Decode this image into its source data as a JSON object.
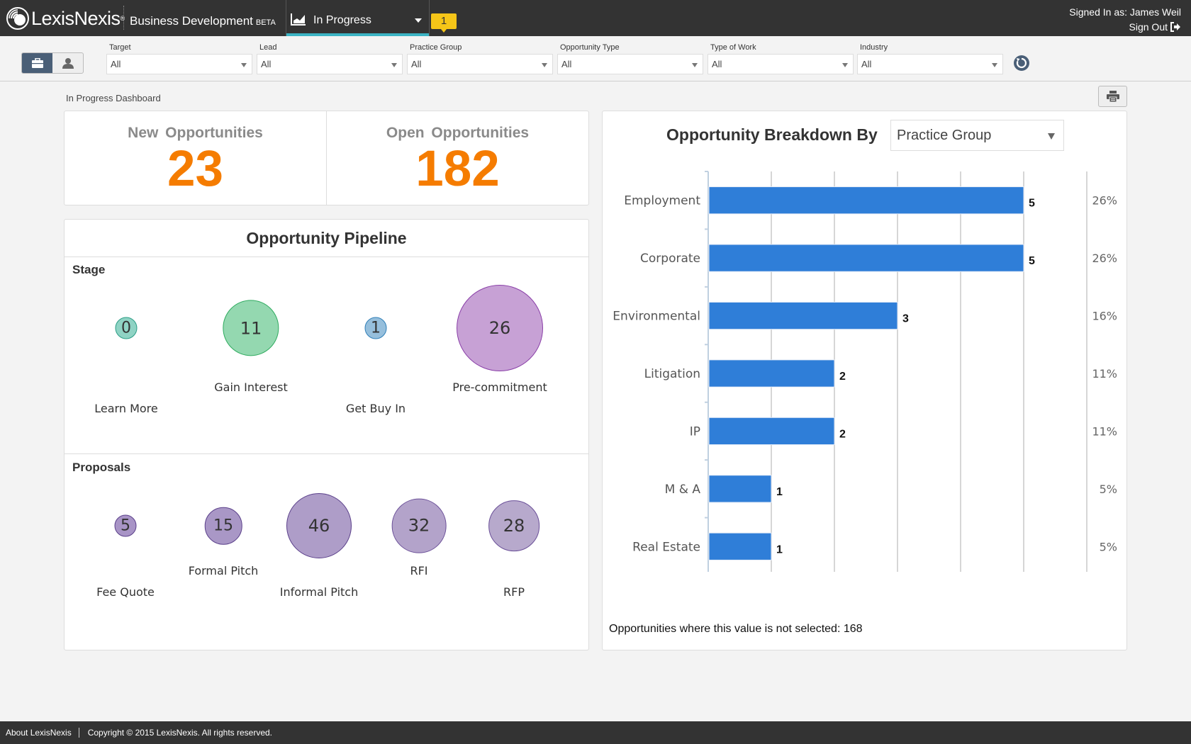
{
  "header": {
    "logo_text": "LexisNexis",
    "app_title": "Business Development",
    "app_badge": "BETA",
    "view_selector": "In Progress",
    "notification_count": "1",
    "signed_in": "Signed In as: James Weil",
    "sign_out": "Sign Out"
  },
  "filters": [
    {
      "label": "Target",
      "value": "All"
    },
    {
      "label": "Lead",
      "value": "All"
    },
    {
      "label": "Practice Group",
      "value": "All"
    },
    {
      "label": "Opportunity Type",
      "value": "All"
    },
    {
      "label": "Type of Work",
      "value": "All"
    },
    {
      "label": "Industry",
      "value": "All"
    }
  ],
  "dashboard": {
    "title": "In Progress Dashboard",
    "kpis": [
      {
        "label": "New Opportunities",
        "value": "23"
      },
      {
        "label": "Open Opportunities",
        "value": "182"
      }
    ],
    "pipeline": {
      "title": "Opportunity Pipeline",
      "stage": {
        "title": "Stage",
        "items": [
          {
            "label": "Learn More",
            "value": "0",
            "fill": "#8fd3c4",
            "stroke": "#2a9d85"
          },
          {
            "label": "Gain Interest",
            "value": "11",
            "fill": "#94d8b0",
            "stroke": "#2fab5f"
          },
          {
            "label": "Get Buy In",
            "value": "1",
            "fill": "#96bfdc",
            "stroke": "#2f7fb8"
          },
          {
            "label": "Pre-commitment",
            "value": "26",
            "fill": "#c7a1d5",
            "stroke": "#8a3fa8"
          }
        ]
      },
      "proposals": {
        "title": "Proposals",
        "items": [
          {
            "label": "Fee Quote",
            "value": "5",
            "fill": "#a894c6",
            "stroke": "#5a3f8a"
          },
          {
            "label": "Formal Pitch",
            "value": "15",
            "fill": "#a997c6",
            "stroke": "#5a3f8a"
          },
          {
            "label": "Informal Pitch",
            "value": "46",
            "fill": "#ae9dc8",
            "stroke": "#5a3f8a"
          },
          {
            "label": "RFI",
            "value": "32",
            "fill": "#b3a3ca",
            "stroke": "#6a4f98"
          },
          {
            "label": "RFP",
            "value": "28",
            "fill": "#b7a9cc",
            "stroke": "#6a4f98"
          }
        ]
      }
    },
    "breakdown": {
      "title": "Opportunity Breakdown By",
      "selected": "Practice Group",
      "footnote": "Opportunities where this value is not selected:  168"
    }
  },
  "chart_data": {
    "type": "bar",
    "orientation": "horizontal",
    "title": "Opportunity Breakdown By Practice Group",
    "categories": [
      "Employment",
      "Corporate",
      "Environmental",
      "Litigation",
      "IP",
      "M & A",
      "Real Estate"
    ],
    "values": [
      5,
      5,
      3,
      2,
      2,
      1,
      1
    ],
    "percent_labels": [
      "26%",
      "26%",
      "16%",
      "11%",
      "11%",
      "5%",
      "5%"
    ],
    "xlim": [
      0,
      6
    ],
    "xticks": [
      "0",
      "1",
      "2",
      "3",
      "4",
      "5",
      "6"
    ],
    "bar_color": "#2f7ed8",
    "grid": true
  },
  "footer": {
    "about": "About LexisNexis",
    "copyright": "Copyright © 2015 LexisNexis. All rights reserved."
  }
}
